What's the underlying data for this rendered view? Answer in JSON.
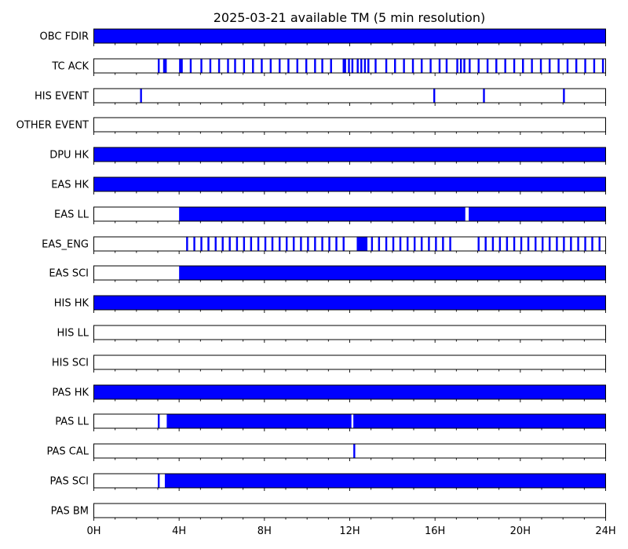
{
  "chart_data": {
    "type": "timeline",
    "title": "2025-03-21 available TM (5 min resolution)",
    "x_unit": "hours",
    "xlim": [
      0,
      24
    ],
    "x_ticks": [
      0,
      4,
      8,
      12,
      16,
      20,
      24
    ],
    "x_tick_labels": [
      "0H",
      "4H",
      "8H",
      "12H",
      "16H",
      "20H",
      "24H"
    ],
    "fill_color": "#0000ff",
    "rows": [
      {
        "label": "OBC FDIR",
        "intervals": [
          [
            0,
            24
          ]
        ]
      },
      {
        "label": "TC ACK",
        "intervals": [
          [
            3.0,
            3.08
          ],
          [
            3.25,
            3.42
          ],
          [
            4.0,
            4.17
          ],
          [
            4.5,
            4.58
          ],
          [
            5.0,
            5.08
          ],
          [
            5.42,
            5.5
          ],
          [
            5.83,
            5.92
          ],
          [
            6.25,
            6.33
          ],
          [
            6.58,
            6.67
          ],
          [
            7.0,
            7.08
          ],
          [
            7.42,
            7.5
          ],
          [
            7.83,
            7.92
          ],
          [
            8.25,
            8.33
          ],
          [
            8.67,
            8.75
          ],
          [
            9.08,
            9.17
          ],
          [
            9.5,
            9.58
          ],
          [
            9.92,
            10.0
          ],
          [
            10.33,
            10.42
          ],
          [
            10.67,
            10.75
          ],
          [
            11.08,
            11.17
          ],
          [
            11.67,
            11.83
          ],
          [
            11.92,
            12.0
          ],
          [
            12.08,
            12.17
          ],
          [
            12.33,
            12.42
          ],
          [
            12.5,
            12.58
          ],
          [
            12.67,
            12.75
          ],
          [
            12.83,
            12.92
          ],
          [
            13.17,
            13.25
          ],
          [
            13.67,
            13.75
          ],
          [
            14.08,
            14.17
          ],
          [
            14.5,
            14.58
          ],
          [
            14.92,
            15.0
          ],
          [
            15.33,
            15.42
          ],
          [
            15.75,
            15.83
          ],
          [
            16.17,
            16.25
          ],
          [
            16.5,
            16.58
          ],
          [
            17.0,
            17.08
          ],
          [
            17.17,
            17.25
          ],
          [
            17.33,
            17.42
          ],
          [
            17.58,
            17.67
          ],
          [
            18.0,
            18.08
          ],
          [
            18.42,
            18.5
          ],
          [
            18.83,
            18.92
          ],
          [
            19.25,
            19.33
          ],
          [
            19.67,
            19.75
          ],
          [
            20.08,
            20.17
          ],
          [
            20.5,
            20.58
          ],
          [
            20.92,
            21.0
          ],
          [
            21.33,
            21.42
          ],
          [
            21.75,
            21.83
          ],
          [
            22.17,
            22.25
          ],
          [
            22.58,
            22.67
          ],
          [
            23.0,
            23.08
          ],
          [
            23.42,
            23.5
          ],
          [
            23.83,
            23.92
          ]
        ]
      },
      {
        "label": "HIS EVENT",
        "intervals": [
          [
            2.17,
            2.25
          ],
          [
            15.92,
            16.0
          ],
          [
            18.25,
            18.33
          ],
          [
            22.0,
            22.08
          ]
        ]
      },
      {
        "label": "OTHER EVENT",
        "intervals": []
      },
      {
        "label": "DPU HK",
        "intervals": [
          [
            0,
            24
          ]
        ]
      },
      {
        "label": "EAS HK",
        "intervals": [
          [
            0,
            24
          ]
        ]
      },
      {
        "label": "EAS LL",
        "intervals": [
          [
            4.0,
            17.42
          ],
          [
            17.58,
            24
          ]
        ]
      },
      {
        "label": "EAS_ENG",
        "intervals": [
          [
            4.33,
            4.42
          ],
          [
            4.67,
            4.75
          ],
          [
            5.0,
            5.08
          ],
          [
            5.33,
            5.42
          ],
          [
            5.67,
            5.75
          ],
          [
            6.0,
            6.08
          ],
          [
            6.33,
            6.42
          ],
          [
            6.67,
            6.75
          ],
          [
            7.0,
            7.08
          ],
          [
            7.33,
            7.42
          ],
          [
            7.67,
            7.75
          ],
          [
            8.0,
            8.08
          ],
          [
            8.33,
            8.42
          ],
          [
            8.67,
            8.75
          ],
          [
            9.0,
            9.08
          ],
          [
            9.33,
            9.42
          ],
          [
            9.67,
            9.75
          ],
          [
            10.0,
            10.08
          ],
          [
            10.33,
            10.42
          ],
          [
            10.67,
            10.75
          ],
          [
            11.0,
            11.08
          ],
          [
            11.33,
            11.42
          ],
          [
            11.67,
            11.75
          ],
          [
            12.33,
            12.83
          ],
          [
            13.0,
            13.08
          ],
          [
            13.33,
            13.42
          ],
          [
            13.67,
            13.75
          ],
          [
            14.0,
            14.08
          ],
          [
            14.33,
            14.42
          ],
          [
            14.67,
            14.75
          ],
          [
            15.0,
            15.08
          ],
          [
            15.33,
            15.42
          ],
          [
            15.67,
            15.75
          ],
          [
            16.0,
            16.08
          ],
          [
            16.33,
            16.42
          ],
          [
            16.67,
            16.75
          ],
          [
            18.0,
            18.08
          ],
          [
            18.33,
            18.42
          ],
          [
            18.67,
            18.75
          ],
          [
            19.0,
            19.08
          ],
          [
            19.33,
            19.42
          ],
          [
            19.67,
            19.75
          ],
          [
            20.0,
            20.08
          ],
          [
            20.33,
            20.42
          ],
          [
            20.67,
            20.75
          ],
          [
            21.0,
            21.08
          ],
          [
            21.33,
            21.42
          ],
          [
            21.67,
            21.75
          ],
          [
            22.0,
            22.08
          ],
          [
            22.33,
            22.42
          ],
          [
            22.67,
            22.75
          ],
          [
            23.0,
            23.08
          ],
          [
            23.33,
            23.42
          ],
          [
            23.67,
            23.75
          ]
        ]
      },
      {
        "label": "EAS SCI",
        "intervals": [
          [
            4.0,
            24
          ]
        ]
      },
      {
        "label": "HIS HK",
        "intervals": [
          [
            0,
            24
          ]
        ]
      },
      {
        "label": "HIS LL",
        "intervals": []
      },
      {
        "label": "HIS SCI",
        "intervals": []
      },
      {
        "label": "PAS HK",
        "intervals": [
          [
            0,
            24
          ]
        ]
      },
      {
        "label": "PAS LL",
        "intervals": [
          [
            3.0,
            3.08
          ],
          [
            3.42,
            12.08
          ],
          [
            12.17,
            24
          ]
        ]
      },
      {
        "label": "PAS CAL",
        "intervals": [
          [
            12.17,
            12.25
          ]
        ]
      },
      {
        "label": "PAS SCI",
        "intervals": [
          [
            3.0,
            3.08
          ],
          [
            3.33,
            24
          ]
        ]
      },
      {
        "label": "PAS BM",
        "intervals": []
      }
    ]
  }
}
